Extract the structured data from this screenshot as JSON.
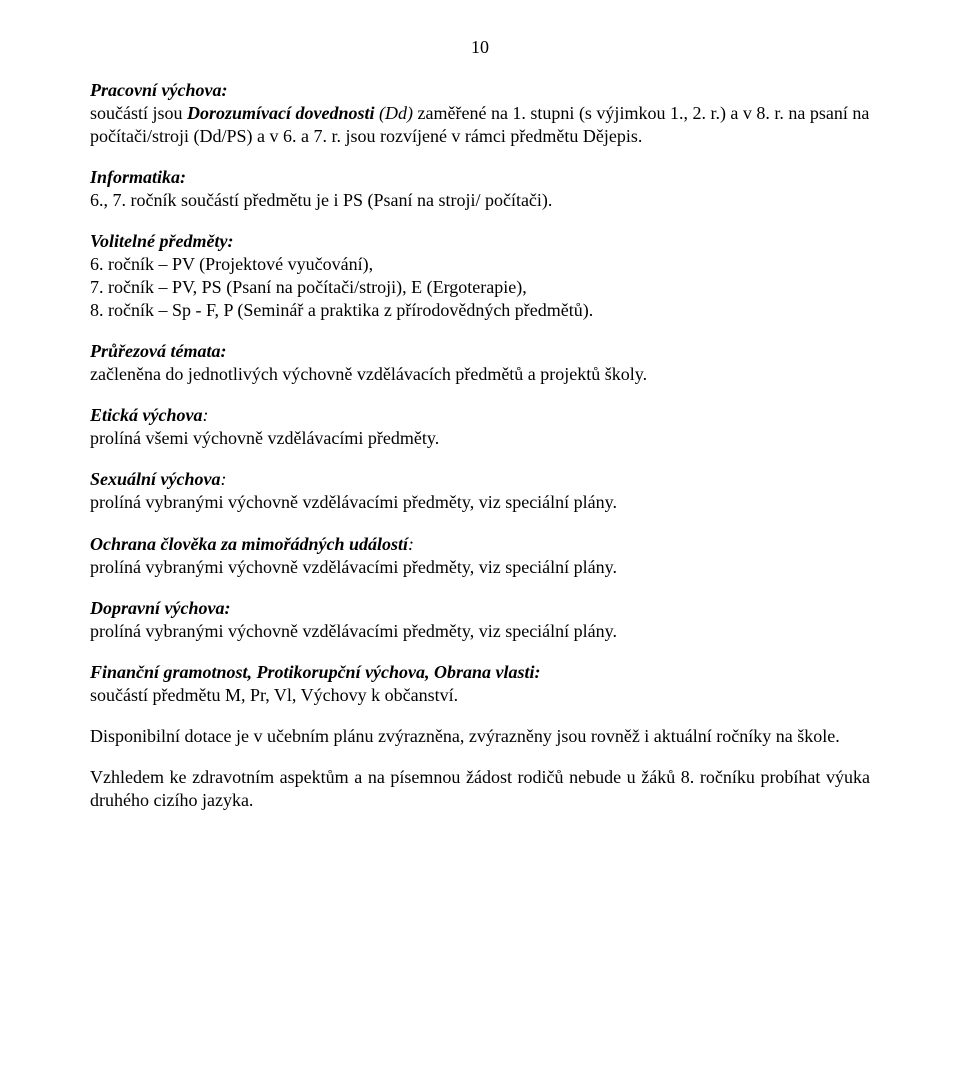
{
  "page_number": "10",
  "sections": {
    "pracovni_vychova": {
      "heading": "Pracovní výchova:",
      "run_plain_a": "součástí jsou ",
      "run_bi": "Dorozumívací dovednosti",
      "run_i": " (Dd)",
      "run_plain_b": " zaměřené na 1. stupni (s výjimkou 1., 2. r.) a v 8. r. na psaní na počítači/stroji (Dd/PS) a v 6. a 7. r. jsou rozvíjené v rámci předmětu Dějepis."
    },
    "informatika": {
      "heading": "Informatika:",
      "body": "6., 7. ročník součástí předmětu je i PS (Psaní na stroji/ počítači)."
    },
    "volitelne": {
      "heading": "Volitelné předměty:",
      "line1": "6. ročník – PV (Projektové vyučování),",
      "line2": "7. ročník – PV, PS (Psaní na počítači/stroji), E (Ergoterapie),",
      "line3": "8. ročník – Sp - F, P (Seminář a praktika z přírodovědných předmětů)."
    },
    "prurezova": {
      "heading": "Průřezová témata:",
      "body": "začleněna do jednotlivých výchovně vzdělávacích předmětů a projektů školy."
    },
    "eticka": {
      "heading": "Etická výchova",
      "colon": ":",
      "body": "prolíná všemi výchovně vzdělávacími předměty."
    },
    "sexualni": {
      "heading": "Sexuální výchova",
      "colon": ":",
      "body": "prolíná vybranými výchovně vzdělávacími předměty, viz speciální plány."
    },
    "ochrana": {
      "heading": "Ochrana člověka za mimořádných událostí",
      "colon": ":",
      "body": "prolíná vybranými výchovně vzdělávacími předměty, viz speciální plány."
    },
    "dopravni": {
      "heading": "Dopravní výchova:",
      "body": "prolíná vybranými výchovně vzdělávacími předměty, viz speciální plány."
    },
    "financni": {
      "heading": "Finanční gramotnost, Protikorupční výchova, Obrana vlasti:",
      "body": "součástí předmětu M, Pr, Vl, Výchovy k občanství."
    },
    "disponibilni": {
      "body": "Disponibilní dotace je v učebním plánu zvýrazněna, zvýrazněny jsou rovněž i aktuální ročníky na škole."
    },
    "zdravotni": {
      "body": "Vzhledem ke zdravotním aspektům a na písemnou žádost rodičů nebude u žáků 8. ročníku probíhat výuka druhého cizího jazyka."
    }
  }
}
